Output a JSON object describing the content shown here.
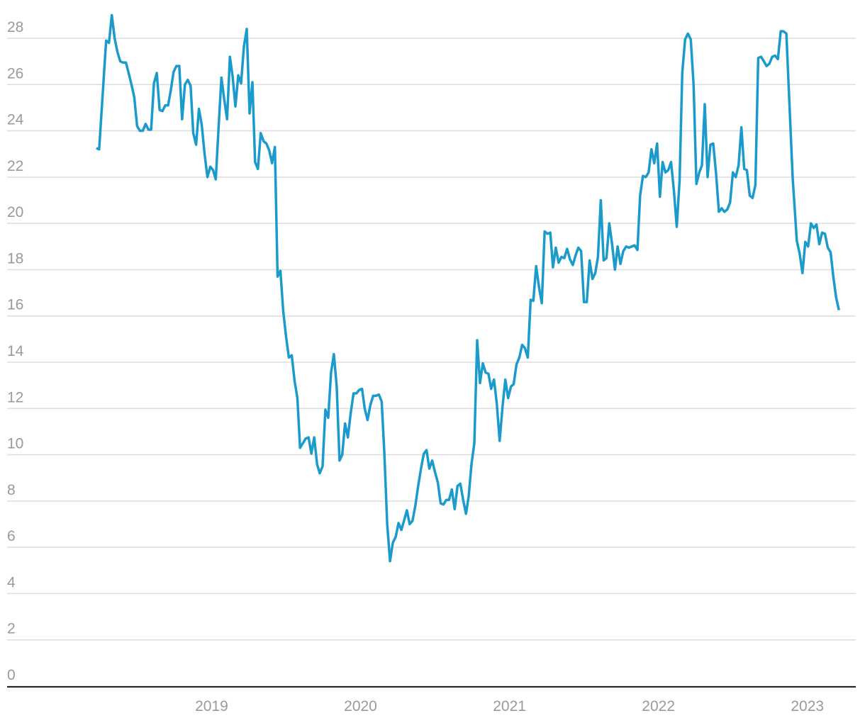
{
  "chart_data": {
    "type": "line",
    "color": "#1a9bcb",
    "grid": true,
    "xlim": [
      2017.627,
      2023.325
    ],
    "xticks": [
      2019,
      2020,
      2021,
      2022,
      2023
    ],
    "ylim": [
      0,
      29.5
    ],
    "yticks": [
      0,
      2,
      4,
      6,
      8,
      10,
      12,
      14,
      16,
      18,
      20,
      22,
      24,
      26,
      28
    ],
    "x": [
      2018.226,
      2018.245,
      2018.274,
      2018.292,
      2018.311,
      2018.33,
      2018.349,
      2018.368,
      2018.387,
      2018.406,
      2018.425,
      2018.443,
      2018.462,
      2018.481,
      2018.5,
      2018.519,
      2018.538,
      2018.557,
      2018.576,
      2018.594,
      2018.613,
      2018.632,
      2018.651,
      2018.67,
      2018.689,
      2018.708,
      2018.726,
      2018.745,
      2018.764,
      2018.783,
      2018.802,
      2018.821,
      2018.84,
      2018.859,
      2018.877,
      2018.896,
      2018.915,
      2018.934,
      2018.953,
      2018.972,
      2018.991,
      2019.01,
      2019.028,
      2019.047,
      2019.066,
      2019.085,
      2019.104,
      2019.123,
      2019.142,
      2019.16,
      2019.179,
      2019.198,
      2019.217,
      2019.236,
      2019.255,
      2019.274,
      2019.292,
      2019.311,
      2019.33,
      2019.349,
      2019.368,
      2019.387,
      2019.406,
      2019.425,
      2019.443,
      2019.462,
      2019.481,
      2019.5,
      2019.519,
      2019.538,
      2019.557,
      2019.576,
      2019.594,
      2019.613,
      2019.632,
      2019.651,
      2019.67,
      2019.689,
      2019.708,
      2019.726,
      2019.745,
      2019.764,
      2019.783,
      2019.802,
      2019.821,
      2019.84,
      2019.859,
      2019.877,
      2019.896,
      2019.915,
      2019.934,
      2019.953,
      2019.972,
      2019.991,
      2020.01,
      2020.028,
      2020.047,
      2020.066,
      2020.085,
      2020.104,
      2020.123,
      2020.142,
      2020.16,
      2020.179,
      2020.198,
      2020.217,
      2020.236,
      2020.255,
      2020.274,
      2020.292,
      2020.311,
      2020.33,
      2020.349,
      2020.368,
      2020.387,
      2020.406,
      2020.425,
      2020.443,
      2020.462,
      2020.481,
      2020.5,
      2020.519,
      2020.538,
      2020.557,
      2020.576,
      2020.594,
      2020.613,
      2020.632,
      2020.651,
      2020.67,
      2020.689,
      2020.708,
      2020.726,
      2020.745,
      2020.764,
      2020.783,
      2020.802,
      2020.821,
      2020.84,
      2020.859,
      2020.877,
      2020.896,
      2020.915,
      2020.934,
      2020.953,
      2020.972,
      2020.991,
      2021.01,
      2021.028,
      2021.047,
      2021.066,
      2021.085,
      2021.104,
      2021.123,
      2021.142,
      2021.16,
      2021.179,
      2021.198,
      2021.217,
      2021.236,
      2021.255,
      2021.274,
      2021.292,
      2021.311,
      2021.33,
      2021.349,
      2021.368,
      2021.387,
      2021.406,
      2021.425,
      2021.443,
      2021.462,
      2021.481,
      2021.5,
      2021.519,
      2021.538,
      2021.557,
      2021.576,
      2021.594,
      2021.613,
      2021.632,
      2021.651,
      2021.67,
      2021.689,
      2021.708,
      2021.726,
      2021.745,
      2021.764,
      2021.783,
      2021.802,
      2021.821,
      2021.84,
      2021.859,
      2021.877,
      2021.896,
      2021.915,
      2021.934,
      2021.953,
      2021.972,
      2021.991,
      2022.01,
      2022.028,
      2022.047,
      2022.066,
      2022.085,
      2022.104,
      2022.123,
      2022.142,
      2022.16,
      2022.179,
      2022.198,
      2022.217,
      2022.236,
      2022.255,
      2022.274,
      2022.292,
      2022.311,
      2022.33,
      2022.349,
      2022.368,
      2022.387,
      2022.406,
      2022.425,
      2022.443,
      2022.462,
      2022.481,
      2022.5,
      2022.519,
      2022.538,
      2022.557,
      2022.576,
      2022.594,
      2022.613,
      2022.632,
      2022.651,
      2022.67,
      2022.689,
      2022.708,
      2022.726,
      2022.745,
      2022.764,
      2022.783,
      2022.802,
      2022.821,
      2022.84,
      2022.859,
      2022.901,
      2022.929,
      2022.948,
      2022.967,
      2022.986,
      2023.005,
      2023.024,
      2023.042,
      2023.061,
      2023.08,
      2023.099,
      2023.118,
      2023.137,
      2023.156,
      2023.175,
      2023.193,
      2023.212
    ],
    "values": [
      23.25,
      23.2,
      26.1,
      27.9,
      27.8,
      29.0,
      28.0,
      27.4,
      27.0,
      26.95,
      26.95,
      26.5,
      26.0,
      25.45,
      24.2,
      24.0,
      24.0,
      24.3,
      24.05,
      24.05,
      26.05,
      26.5,
      24.9,
      24.85,
      25.1,
      25.1,
      25.75,
      26.55,
      26.8,
      26.8,
      24.5,
      26.0,
      26.2,
      25.95,
      23.9,
      23.4,
      24.95,
      24.25,
      23.0,
      22.0,
      22.45,
      22.3,
      21.9,
      24.15,
      26.3,
      25.35,
      24.5,
      27.2,
      26.3,
      25.05,
      26.4,
      26.05,
      27.65,
      28.4,
      24.75,
      26.1,
      22.65,
      22.35,
      23.9,
      23.55,
      23.45,
      23.15,
      22.6,
      23.3,
      17.7,
      17.95,
      16.2,
      15.1,
      14.2,
      14.3,
      13.2,
      12.45,
      10.3,
      10.5,
      10.7,
      10.75,
      10.05,
      10.75,
      9.6,
      9.2,
      9.5,
      11.95,
      11.6,
      13.55,
      14.35,
      12.95,
      9.75,
      10.0,
      11.35,
      10.75,
      11.8,
      12.65,
      12.65,
      12.8,
      12.85,
      12.0,
      11.5,
      12.15,
      12.55,
      12.55,
      12.6,
      12.3,
      10.05,
      7.0,
      5.4,
      6.2,
      6.45,
      7.05,
      6.75,
      7.15,
      7.6,
      7.0,
      7.15,
      7.8,
      8.65,
      9.4,
      10.05,
      10.2,
      9.4,
      9.75,
      9.25,
      8.8,
      7.9,
      7.85,
      8.05,
      8.05,
      8.5,
      7.65,
      8.65,
      8.75,
      8.05,
      7.45,
      8.2,
      9.6,
      10.5,
      14.95,
      13.1,
      13.95,
      13.55,
      13.5,
      12.85,
      13.25,
      12.2,
      10.6,
      12.05,
      13.25,
      12.45,
      12.95,
      13.05,
      13.9,
      14.2,
      14.75,
      14.6,
      14.2,
      16.7,
      16.65,
      18.15,
      17.25,
      16.55,
      19.65,
      19.55,
      19.6,
      18.1,
      18.95,
      18.3,
      18.55,
      18.5,
      18.9,
      18.45,
      18.2,
      18.6,
      18.95,
      18.8,
      16.6,
      16.6,
      18.4,
      17.6,
      17.85,
      18.55,
      21.0,
      18.4,
      18.5,
      20.0,
      19.1,
      18.0,
      19.0,
      18.25,
      18.8,
      19.0,
      18.95,
      19.0,
      19.05,
      18.85,
      21.2,
      22.05,
      22.0,
      22.2,
      23.2,
      22.6,
      23.45,
      21.15,
      22.65,
      22.2,
      22.3,
      22.65,
      21.4,
      19.85,
      21.85,
      26.5,
      27.95,
      28.2,
      27.95,
      26.0,
      21.7,
      22.2,
      22.5,
      25.15,
      22.0,
      23.4,
      23.45,
      22.15,
      20.5,
      20.65,
      20.5,
      20.6,
      20.9,
      22.2,
      22.0,
      22.5,
      24.15,
      22.35,
      22.3,
      21.2,
      21.1,
      21.65,
      27.15,
      27.2,
      27.0,
      26.8,
      26.9,
      27.2,
      27.25,
      27.1,
      28.3,
      28.3,
      28.2,
      22.0,
      19.25,
      18.7,
      17.85,
      19.2,
      19.0,
      20.0,
      19.8,
      19.95,
      19.1,
      19.6,
      19.55,
      18.95,
      18.75,
      17.65,
      16.8,
      16.25
    ]
  }
}
